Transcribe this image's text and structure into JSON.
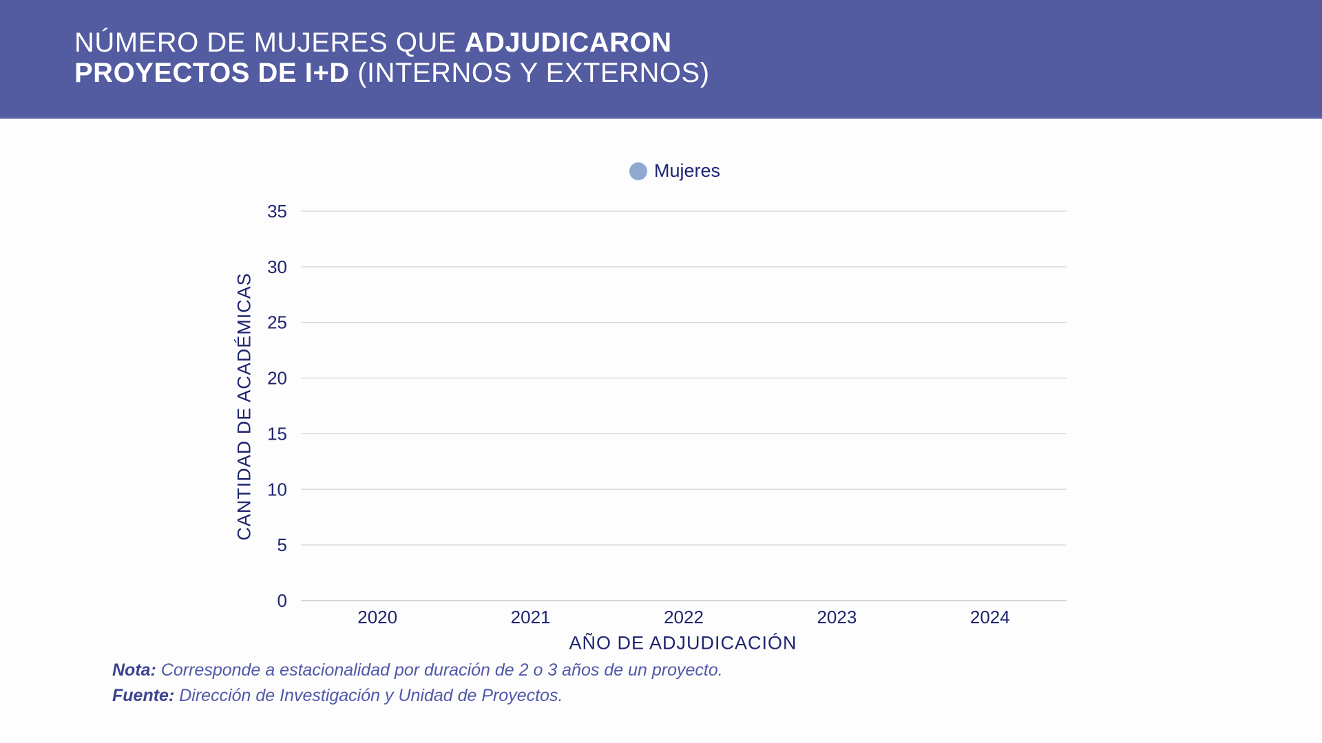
{
  "header": {
    "title_line1_light": "NÚMERO DE MUJERES QUE ",
    "title_line1_bold": "ADJUDICARON",
    "title_line2_bold": "PROYECTOS DE I+D",
    "title_line2_light": " (INTERNOS Y EXTERNOS)"
  },
  "colors": {
    "header": "#535ba1",
    "text": "#1f2470",
    "series": "#8fa8d0",
    "note": "#5058a8"
  },
  "chart_data": {
    "type": "bar",
    "title": "NÚMERO DE MUJERES QUE ADJUDICARON PROYECTOS DE I+D (INTERNOS Y EXTERNOS)",
    "categories": [
      "2020",
      "2021",
      "2022",
      "2023",
      "2024"
    ],
    "series": [
      {
        "name": "Mujeres",
        "values": [
          null,
          null,
          null,
          null,
          null
        ]
      }
    ],
    "xlabel": "AÑO DE ADJUDICACIÓN",
    "ylabel": "CANTIDAD DE ACADÉMICAS",
    "ylim": [
      0,
      35
    ],
    "yticks": [
      "0",
      "5",
      "10",
      "15",
      "20",
      "25",
      "30",
      "35"
    ],
    "grid": true,
    "legend": "top-center"
  },
  "notes": {
    "nota_label": "Nota:",
    "nota_text": " Corresponde a estacionalidad por duración de 2 o 3 años de un proyecto.",
    "fuente_label": "Fuente:",
    "fuente_text": " Dirección de Investigación y Unidad de Proyectos."
  }
}
